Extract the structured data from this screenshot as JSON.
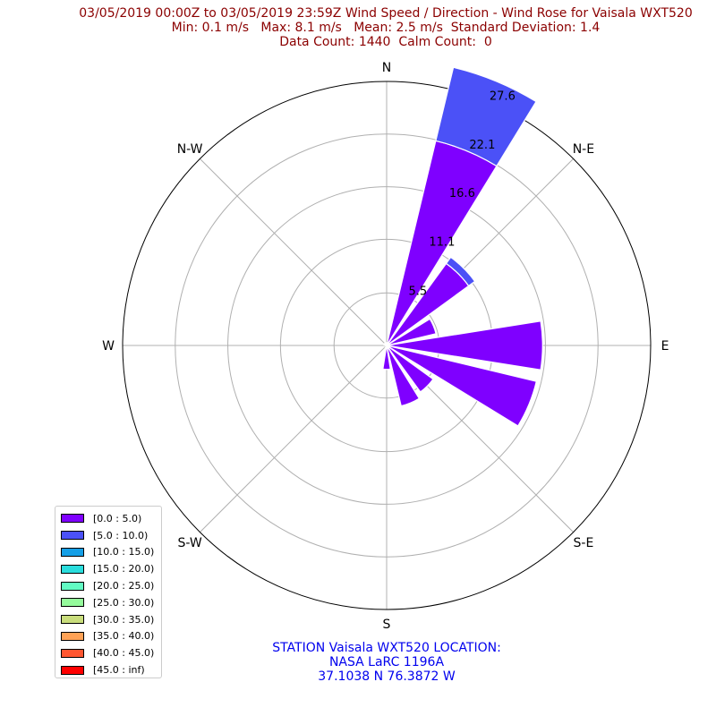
{
  "title": {
    "line1": "03/05/2019 00:00Z to 03/05/2019 23:59Z Wind Speed / Direction - Wind Rose for Vaisala WXT520",
    "line2": "Min: 0.1 m/s   Max: 8.1 m/s   Mean: 2.5 m/s  Standard Deviation: 1.4",
    "line3": "Data Count: 1440  Calm Count:  0"
  },
  "station": {
    "line1": "STATION Vaisala WXT520 LOCATION:",
    "line2": "NASA LaRC 1196A",
    "line3": "37.1038 N 76.3872 W"
  },
  "legend": [
    {
      "label": "[0.0 : 5.0)",
      "color": "#7f00ff"
    },
    {
      "label": "[5.0 : 10.0)",
      "color": "#4b51f7"
    },
    {
      "label": "[10.0 : 15.0)",
      "color": "#159fe6"
    },
    {
      "label": "[15.0 : 20.0)",
      "color": "#2adddd"
    },
    {
      "label": "[20.0 : 25.0)",
      "color": "#62fbc3"
    },
    {
      "label": "[25.0 : 30.0)",
      "color": "#95fb9c"
    },
    {
      "label": "[30.0 : 35.0)",
      "color": "#c9dd7c"
    },
    {
      "label": "[35.0 : 40.0)",
      "color": "#ffa256"
    },
    {
      "label": "[40.0 : 45.0)",
      "color": "#ff5630"
    },
    {
      "label": "[45.0 : inf)",
      "color": "#ff0000"
    }
  ],
  "chart_data": {
    "type": "windrose",
    "direction_labels": [
      "N",
      "N-E",
      "E",
      "S-E",
      "S",
      "S-W",
      "W",
      "N-W"
    ],
    "radial_ticks": [
      5.5,
      11.1,
      16.6,
      22.1,
      27.6
    ],
    "radial_tick_labels": [
      "5.5",
      "11.1",
      "16.6",
      "22.1",
      "27.6"
    ],
    "rmax": 27.6,
    "grid": true,
    "legend_placement": "lower-left",
    "sector_directions_deg": [
      0,
      22.5,
      45,
      67.5,
      90,
      112.5,
      135,
      157.5,
      180,
      202.5,
      225,
      247.5,
      270,
      292.5,
      315,
      337.5
    ],
    "series": [
      {
        "name": "[0.0 : 5.0)",
        "color": "#7f00ff",
        "values": [
          0.3,
          22.0,
          10.6,
          5.3,
          16.3,
          16.1,
          6.0,
          6.5,
          2.5,
          0.3,
          0.1,
          0.1,
          0.1,
          0.3,
          0.3,
          0.2
        ]
      },
      {
        "name": "[5.0 : 10.0)",
        "color": "#4b51f7",
        "values": [
          0,
          7.9,
          0.8,
          0,
          0,
          0,
          0,
          0,
          0,
          0,
          0,
          0,
          0,
          0,
          0,
          0
        ]
      }
    ]
  }
}
